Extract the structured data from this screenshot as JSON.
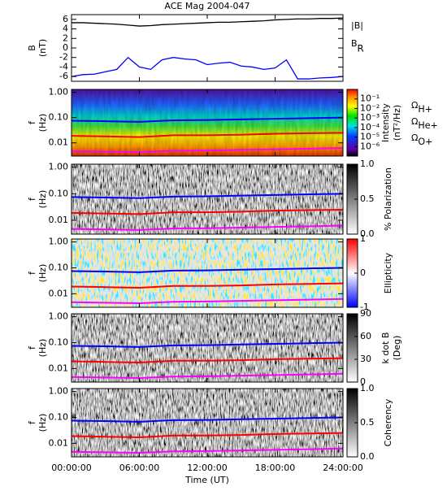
{
  "chart_data": [
    {
      "type": "line",
      "title": "ACE Mag 2004-047",
      "ylabel": "B",
      "yunit": "(nT)",
      "xlim": [
        0,
        24
      ],
      "ylim": [
        -7,
        7
      ],
      "yticks": [
        -6,
        -4,
        -2,
        0,
        2,
        4,
        6
      ],
      "x": [
        0,
        1,
        2,
        3,
        4,
        5,
        6,
        7,
        8,
        9,
        10,
        11,
        12,
        13,
        14,
        15,
        16,
        17,
        18,
        19,
        20,
        21,
        22,
        23,
        24
      ],
      "series": [
        {
          "name": "|B|",
          "color": "#000000",
          "values": [
            5.3,
            5.3,
            5.2,
            5.1,
            5.0,
            4.8,
            4.6,
            4.7,
            4.9,
            5.0,
            5.1,
            5.2,
            5.3,
            5.4,
            5.4,
            5.5,
            5.6,
            5.7,
            5.9,
            6.0,
            6.1,
            6.1,
            6.2,
            6.2,
            6.3
          ]
        },
        {
          "name": "B",
          "subscript": "R",
          "color": "#0000ff",
          "values": [
            -6.0,
            -5.6,
            -5.5,
            -5.0,
            -4.5,
            -2.0,
            -4.0,
            -4.5,
            -2.5,
            -2.0,
            -2.3,
            -2.5,
            -3.5,
            -3.2,
            -3.0,
            -3.8,
            -4.0,
            -4.5,
            -4.2,
            -2.5,
            -6.5,
            -6.5,
            -6.3,
            -6.2,
            -6.0
          ]
        }
      ]
    },
    {
      "type": "spectrogram",
      "ylabel": "f",
      "yunit": "(Hz)",
      "xlim": [
        0,
        24
      ],
      "ylim": [
        0.003,
        1.3
      ],
      "log_y": true,
      "yticks": [
        {
          "value": 1,
          "label": "1.00"
        },
        {
          "value": 0.1,
          "label": "0.10"
        },
        {
          "value": 0.01,
          "label": "0.01"
        }
      ],
      "colormap": "rainbow",
      "cbar_label": "Intensity",
      "cbar_unit": "(nT²/Hz)",
      "clim": [
        1e-07,
        1
      ],
      "log_c": true,
      "cticks": [
        {
          "value": 0.1,
          "label": "10⁻¹"
        },
        {
          "value": 0.01,
          "label": "10⁻²"
        },
        {
          "value": 0.001,
          "label": "10⁻³"
        },
        {
          "value": 0.0001,
          "label": "10⁻⁴"
        },
        {
          "value": 1e-05,
          "label": "10⁻⁵"
        },
        {
          "value": 1e-06,
          "label": "10⁻⁶"
        }
      ],
      "x": [
        0,
        3,
        6,
        9,
        12,
        15,
        18,
        21,
        24
      ],
      "series": [
        {
          "name": "Ω",
          "subscript": "H+",
          "color": "#0000ff",
          "values": [
            0.075,
            0.072,
            0.068,
            0.078,
            0.08,
            0.085,
            0.09,
            0.095,
            0.1
          ]
        },
        {
          "name": "Ω",
          "subscript": "He+",
          "color": "#ff0000",
          "values": [
            0.019,
            0.018,
            0.017,
            0.02,
            0.02,
            0.021,
            0.023,
            0.024,
            0.025
          ]
        },
        {
          "name": "Ω",
          "subscript": "O+",
          "color": "#ff00ff",
          "values": [
            0.0047,
            0.0045,
            0.0043,
            0.0049,
            0.005,
            0.0053,
            0.0056,
            0.0059,
            0.0063
          ]
        }
      ]
    },
    {
      "type": "spectrogram",
      "ylabel": "f",
      "yunit": "(Hz)",
      "xlim": [
        0,
        24
      ],
      "ylim": [
        0.003,
        1.3
      ],
      "log_y": true,
      "yticks": [
        {
          "value": 1,
          "label": "1.00"
        },
        {
          "value": 0.1,
          "label": "0.10"
        },
        {
          "value": 0.01,
          "label": "0.01"
        }
      ],
      "colormap": "gray",
      "cbar_label": "% Polarization",
      "clim": [
        0,
        1
      ],
      "cticks": [
        {
          "value": 0,
          "label": "0.0"
        },
        {
          "value": 0.5,
          "label": "0.5"
        },
        {
          "value": 1,
          "label": "1.0"
        }
      ]
    },
    {
      "type": "spectrogram",
      "ylabel": "f",
      "yunit": "(Hz)",
      "xlim": [
        0,
        24
      ],
      "ylim": [
        0.003,
        1.3
      ],
      "log_y": true,
      "yticks": [
        {
          "value": 1,
          "label": "1.00"
        },
        {
          "value": 0.1,
          "label": "0.10"
        },
        {
          "value": 0.01,
          "label": "0.01"
        }
      ],
      "colormap": "bwr",
      "cbar_label": "Ellipticity",
      "clim": [
        -1,
        1
      ],
      "cticks": [
        -1,
        0,
        1
      ]
    },
    {
      "type": "spectrogram",
      "ylabel": "f",
      "yunit": "(Hz)",
      "xlim": [
        0,
        24
      ],
      "ylim": [
        0.003,
        1.3
      ],
      "log_y": true,
      "yticks": [
        {
          "value": 1,
          "label": "1.00"
        },
        {
          "value": 0.1,
          "label": "0.10"
        },
        {
          "value": 0.01,
          "label": "0.01"
        }
      ],
      "colormap": "gray",
      "cbar_label": "k dot B",
      "cbar_unit": "(Deg)",
      "clim": [
        0,
        90
      ],
      "cticks": [
        0,
        30,
        60,
        90
      ]
    },
    {
      "type": "spectrogram",
      "ylabel": "f",
      "yunit": "(Hz)",
      "xlim": [
        0,
        24
      ],
      "ylim": [
        0.003,
        1.3
      ],
      "log_y": true,
      "yticks": [
        {
          "value": 1,
          "label": "1.00"
        },
        {
          "value": 0.1,
          "label": "0.10"
        },
        {
          "value": 0.01,
          "label": "0.01"
        }
      ],
      "colormap": "gray",
      "cbar_label": "Coherency",
      "clim": [
        0,
        1
      ],
      "cticks": [
        {
          "value": 0,
          "label": "0.0"
        },
        {
          "value": 0.5,
          "label": "0.5"
        },
        {
          "value": 1,
          "label": "1.0"
        }
      ],
      "xlabel": "Time (UT)",
      "xticks": [
        {
          "value": 0,
          "label": "00:00:00"
        },
        {
          "value": 6,
          "label": "06:00:00"
        },
        {
          "value": 12,
          "label": "12:00:00"
        },
        {
          "value": 18,
          "label": "18:00:00"
        },
        {
          "value": 24,
          "label": "24:00:00"
        }
      ]
    }
  ]
}
